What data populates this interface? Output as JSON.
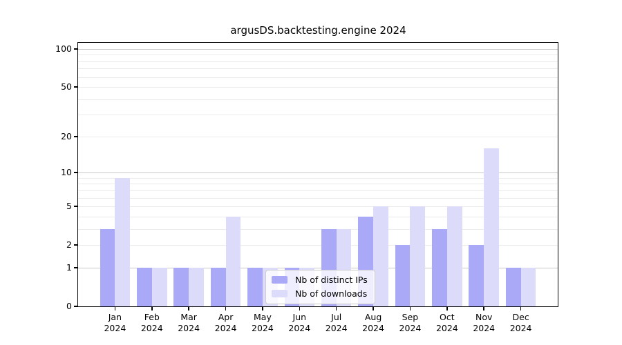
{
  "title": "argusDS.backtesting.engine 2024",
  "chart_data": {
    "type": "bar",
    "title": "argusDS.backtesting.engine 2024",
    "xlabel": "",
    "ylabel": "",
    "year": "2024",
    "categories": [
      "Jan",
      "Feb",
      "Mar",
      "Apr",
      "May",
      "Jun",
      "Jul",
      "Aug",
      "Sep",
      "Oct",
      "Nov",
      "Dec"
    ],
    "series": [
      {
        "name": "Nb of distinct IPs",
        "color": "#a9a9f8",
        "values": [
          3,
          1,
          1,
          1,
          1,
          1,
          3,
          4,
          2,
          3,
          2,
          1
        ]
      },
      {
        "name": "Nb of downloads",
        "color": "#dcdcfa",
        "values": [
          9,
          1,
          1,
          4,
          1,
          1,
          3,
          5,
          5,
          5,
          16,
          1
        ]
      }
    ],
    "y_scale": "log1p",
    "yticks": [
      0,
      1,
      2,
      5,
      10,
      20,
      50,
      100
    ],
    "ylim": [
      0,
      112
    ],
    "major_grid": [
      1,
      10,
      100
    ],
    "minor_grid": [
      2,
      3,
      4,
      5,
      6,
      7,
      8,
      9,
      20,
      30,
      40,
      50,
      60,
      70,
      80,
      90
    ],
    "grid": "horizontal",
    "legend_position": "lower-center"
  },
  "colors": {
    "bar_dark": "#a9a9f8",
    "bar_light": "#dcdcfa",
    "grid_minor": "#ebebeb",
    "grid_major": "#c8c8c8",
    "spine": "#000000",
    "legend_border": "#cccccc"
  }
}
